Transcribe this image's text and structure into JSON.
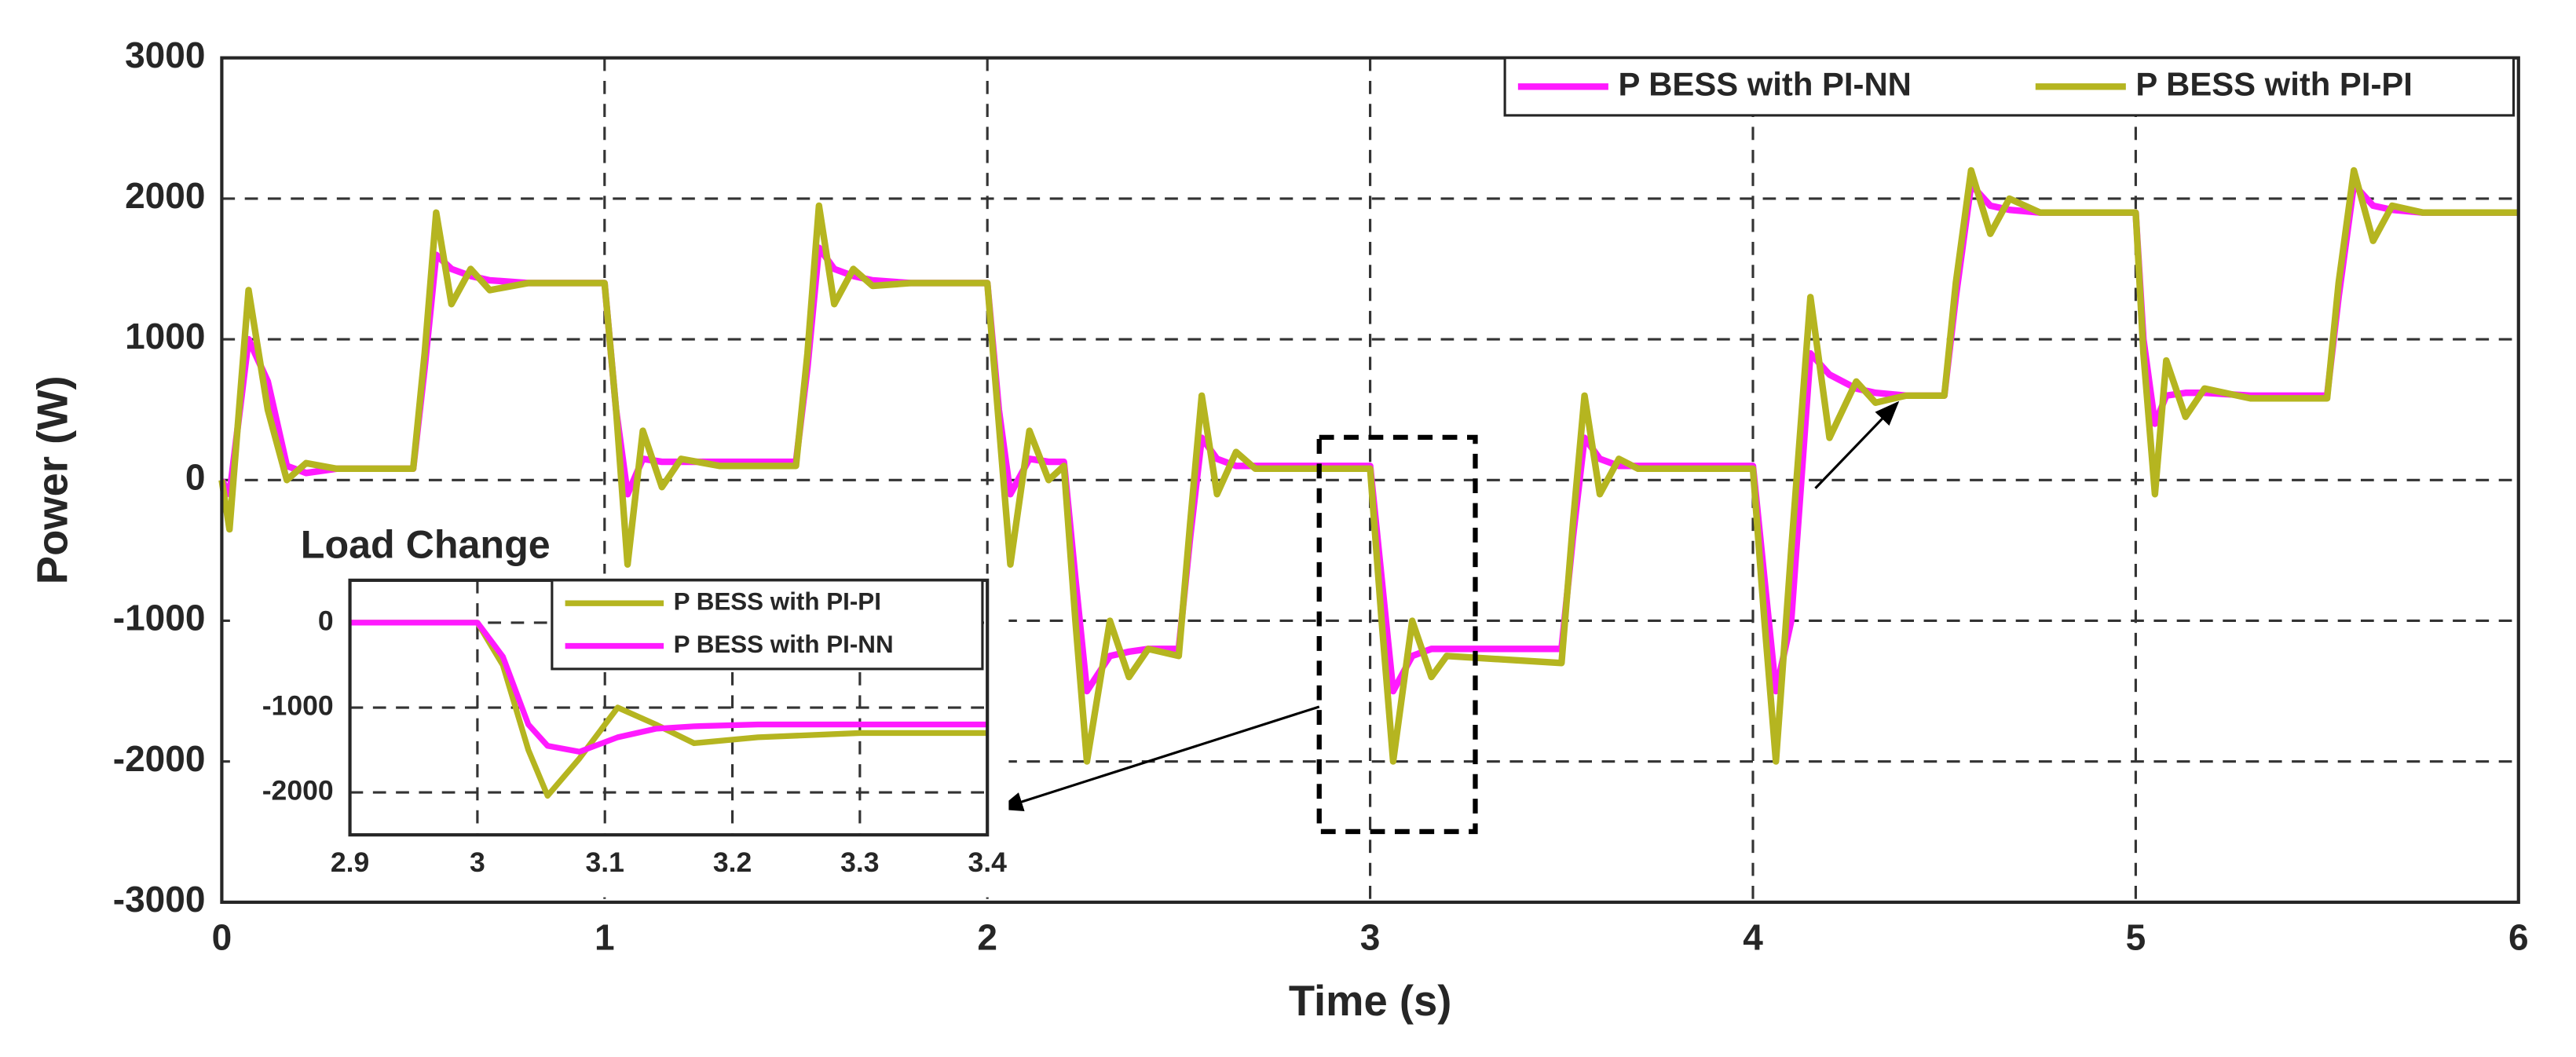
{
  "chart_data": [
    {
      "type": "line",
      "xlabel": "Time (s)",
      "ylabel": "Power (W)",
      "grid": true,
      "legend": "top-right",
      "xlim": [
        0,
        6
      ],
      "ylim": [
        -3000,
        3000
      ],
      "xticks": [
        0,
        1,
        2,
        3,
        4,
        5,
        6
      ],
      "yticks": [
        -3000,
        -2000,
        -1000,
        0,
        1000,
        2000,
        3000
      ],
      "x": [
        0,
        0.02,
        0.07,
        0.12,
        0.17,
        0.22,
        0.3,
        0.5,
        0.53,
        0.56,
        0.6,
        0.65,
        0.7,
        0.8,
        1.0,
        1.03,
        1.06,
        1.1,
        1.15,
        1.2,
        1.3,
        1.5,
        1.53,
        1.56,
        1.6,
        1.65,
        1.7,
        1.8,
        2.0,
        2.03,
        2.06,
        2.11,
        2.16,
        2.2,
        2.23,
        2.26,
        2.32,
        2.37,
        2.42,
        2.5,
        2.53,
        2.56,
        2.6,
        2.65,
        2.7,
        3.0,
        3.03,
        3.06,
        3.11,
        3.16,
        3.2,
        3.5,
        3.53,
        3.56,
        3.6,
        3.65,
        3.7,
        4.0,
        4.03,
        4.06,
        4.1,
        4.15,
        4.2,
        4.27,
        4.32,
        4.4,
        4.5,
        4.53,
        4.57,
        4.62,
        4.67,
        4.75,
        5.0,
        5.02,
        5.05,
        5.08,
        5.13,
        5.18,
        5.3,
        5.5,
        5.53,
        5.57,
        5.62,
        5.67,
        5.75,
        6.0
      ],
      "series": [
        {
          "name": "P BESS with PI-NN",
          "color": "#ff1aff",
          "values": [
            0,
            -100,
            1000,
            700,
            100,
            50,
            80,
            80,
            800,
            1600,
            1500,
            1450,
            1420,
            1400,
            1400,
            500,
            -100,
            150,
            130,
            130,
            130,
            130,
            800,
            1650,
            1500,
            1450,
            1420,
            1400,
            1400,
            500,
            -100,
            150,
            130,
            130,
            -700,
            -1500,
            -1250,
            -1220,
            -1200,
            -1200,
            -400,
            300,
            150,
            100,
            100,
            100,
            -700,
            -1500,
            -1250,
            -1200,
            -1200,
            -1200,
            -400,
            300,
            150,
            100,
            100,
            100,
            -700,
            -1500,
            -1000,
            900,
            750,
            650,
            620,
            600,
            600,
            1300,
            2100,
            1950,
            1920,
            1900,
            1900,
            1000,
            400,
            600,
            620,
            620,
            600,
            600,
            1300,
            2100,
            1950,
            1920,
            1900,
            1900
          ]
        },
        {
          "name": "P BESS with PI-PI",
          "color": "#b5b520",
          "values": [
            0,
            -350,
            1350,
            500,
            0,
            120,
            80,
            80,
            900,
            1900,
            1250,
            1500,
            1350,
            1400,
            1400,
            500,
            -600,
            350,
            -50,
            150,
            100,
            100,
            900,
            1950,
            1250,
            1500,
            1380,
            1400,
            1400,
            400,
            -600,
            350,
            0,
            100,
            -1000,
            -2000,
            -1000,
            -1400,
            -1200,
            -1250,
            -300,
            600,
            -100,
            200,
            80,
            80,
            -1000,
            -2000,
            -1000,
            -1400,
            -1250,
            -1300,
            -300,
            600,
            -100,
            150,
            80,
            80,
            -1000,
            -2000,
            -500,
            1300,
            300,
            700,
            550,
            600,
            600,
            1400,
            2200,
            1750,
            2000,
            1900,
            1900,
            900,
            -100,
            850,
            450,
            650,
            580,
            580,
            1400,
            2200,
            1700,
            1950,
            1900,
            1900
          ]
        }
      ]
    },
    {
      "type": "line",
      "annotation": "Load Change",
      "grid": true,
      "legend": "top-right",
      "xlim": [
        2.9,
        3.4
      ],
      "ylim": [
        -2500,
        500
      ],
      "xticks": [
        2.9,
        3,
        3.1,
        3.2,
        3.3,
        3.4
      ],
      "yticks": [
        -2000,
        -1000,
        0
      ],
      "x": [
        2.9,
        3.0,
        3.02,
        3.04,
        3.055,
        3.08,
        3.11,
        3.14,
        3.17,
        3.22,
        3.3,
        3.4
      ],
      "series": [
        {
          "name": "P BESS with PI-PI",
          "color": "#b5b520",
          "values": [
            0,
            0,
            -500,
            -1500,
            -2040,
            -1600,
            -1000,
            -1200,
            -1420,
            -1350,
            -1300,
            -1300
          ]
        },
        {
          "name": "P BESS with PI-NN",
          "color": "#ff1aff",
          "values": [
            0,
            0,
            -400,
            -1200,
            -1450,
            -1520,
            -1350,
            -1250,
            -1220,
            -1200,
            -1200,
            -1200
          ]
        }
      ]
    }
  ]
}
